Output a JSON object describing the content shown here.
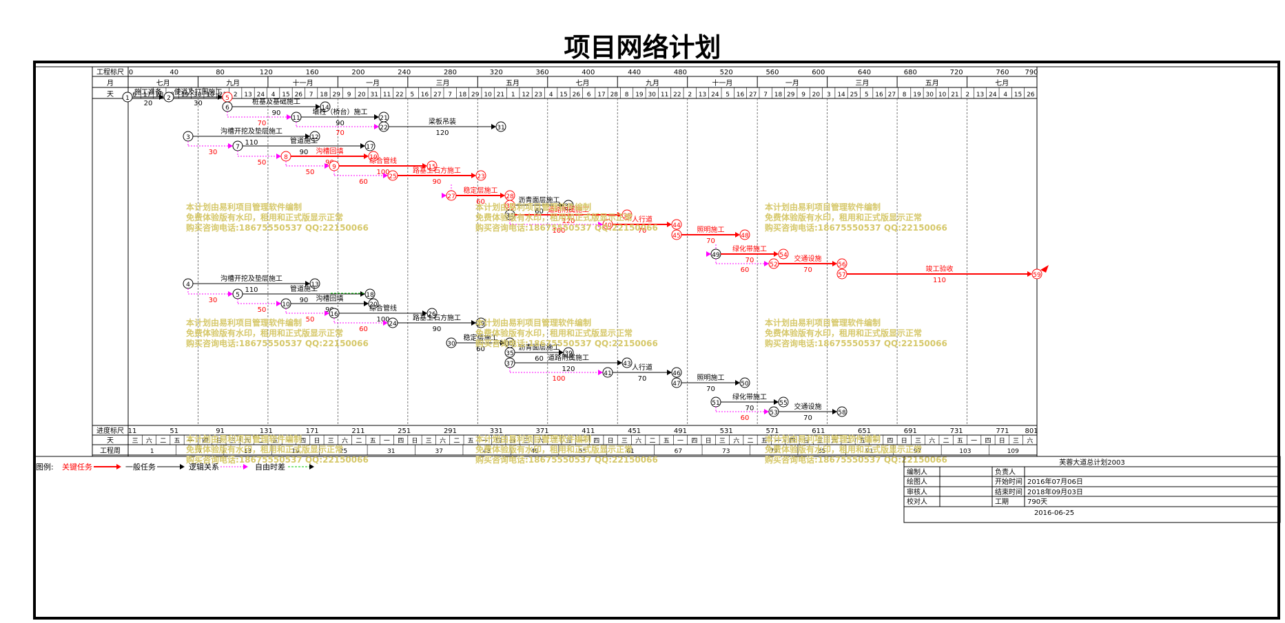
{
  "title": "项目网络计划",
  "colors": {
    "critical": "#ff0000",
    "normal": "#000000",
    "logic": "#ff00ff",
    "float": "#00cc00",
    "watermark": "#d6c86a"
  },
  "scale": {
    "label": "工程标尺",
    "ticks": [
      "0",
      "40",
      "80",
      "120",
      "160",
      "200",
      "240",
      "280",
      "320",
      "360",
      "400",
      "440",
      "480",
      "520",
      "560",
      "600",
      "640",
      "680",
      "720",
      "760",
      "790"
    ]
  },
  "months": {
    "label": "月",
    "items": [
      "七月",
      "九月",
      "十一月",
      "一月",
      "三月",
      "五月",
      "七月",
      "九月",
      "十一月",
      "一月",
      "三月",
      "五月",
      "七月"
    ]
  },
  "days": {
    "label": "天",
    "items": [
      "6",
      "17",
      "28",
      "8",
      "19",
      "30",
      "10",
      "21",
      "2",
      "13",
      "24",
      "4",
      "15",
      "26",
      "7",
      "18",
      "29",
      "9",
      "20",
      "31",
      "11",
      "22",
      "5",
      "16",
      "27",
      "7",
      "18",
      "29",
      "10",
      "21",
      "1",
      "12",
      "23",
      "4",
      "15",
      "26",
      "6",
      "17",
      "28",
      "8",
      "19",
      "30",
      "11",
      "22",
      "2",
      "13",
      "24",
      "5",
      "16",
      "27",
      "7",
      "18",
      "29",
      "9",
      "20",
      "3",
      "14",
      "25",
      "5",
      "16",
      "27",
      "8",
      "19",
      "30",
      "10",
      "21",
      "2",
      "13",
      "24",
      "4",
      "15",
      "26"
    ]
  },
  "progress": {
    "label": "进度标尺",
    "ticks": [
      "11",
      "51",
      "91",
      "131",
      "171",
      "211",
      "251",
      "291",
      "331",
      "371",
      "411",
      "451",
      "491",
      "531",
      "571",
      "611",
      "651",
      "691",
      "731",
      "771",
      "801"
    ]
  },
  "weekday": {
    "label": "天",
    "items": [
      "三",
      "六",
      "二",
      "五",
      "一",
      "四",
      "日",
      "三",
      "六",
      "二",
      "五",
      "一",
      "四",
      "日",
      "三",
      "六",
      "二",
      "五",
      "一",
      "四",
      "日",
      "三",
      "六",
      "二",
      "五",
      "一",
      "四",
      "日",
      "三",
      "六",
      "二",
      "五",
      "一",
      "四",
      "日",
      "三",
      "六",
      "二",
      "五",
      "一",
      "四",
      "日",
      "三",
      "六",
      "二",
      "五",
      "一",
      "四",
      "日",
      "三",
      "六",
      "二",
      "五",
      "一",
      "四",
      "日",
      "三",
      "六",
      "二",
      "五",
      "一",
      "四",
      "日",
      "三",
      "六"
    ]
  },
  "weeks": {
    "label": "工程周",
    "items": [
      "1",
      "7",
      "13",
      "19",
      "25",
      "31",
      "37",
      "43",
      "49",
      "55",
      "61",
      "67",
      "73",
      "79",
      "85",
      "91",
      "97",
      "103",
      "109"
    ]
  },
  "nodes_top": [
    "1",
    "2",
    "5",
    "6",
    "14",
    "11",
    "21",
    "22",
    "31",
    "3",
    "12",
    "7",
    "17",
    "8",
    "19",
    "9",
    "15",
    "25",
    "23",
    "27",
    "28",
    "32",
    "33",
    "34",
    "38",
    "36",
    "42",
    "40",
    "44",
    "45",
    "48",
    "49",
    "54",
    "52",
    "56",
    "57",
    "59"
  ],
  "nodes_bottom": [
    "4",
    "13",
    "5",
    "18",
    "10",
    "20",
    "16",
    "26",
    "24",
    "29",
    "30",
    "35",
    "39",
    "37",
    "43",
    "41",
    "46",
    "47",
    "50",
    "51",
    "55",
    "53",
    "58"
  ],
  "tasks": [
    {
      "label": "施工准备",
      "dur": "20"
    },
    {
      "label": "便道及打围施工",
      "dur": "30"
    },
    {
      "label": "桩基及基础施工",
      "dur": "90"
    },
    {
      "label": "墩柱（桥台）施工",
      "dur": "90"
    },
    {
      "label": "梁板吊装",
      "dur": "120"
    },
    {
      "label": "沟槽开挖及垫层施工",
      "dur": "110"
    },
    {
      "label": "管道施工",
      "dur": "90"
    },
    {
      "label": "沟槽回填",
      "dur": "90"
    },
    {
      "label": "综合管线",
      "dur": "100"
    },
    {
      "label": "路基土石方施工",
      "dur": "90"
    },
    {
      "label": "稳定层施工",
      "dur": "60"
    },
    {
      "label": "沥青面层施工",
      "dur": "60"
    },
    {
      "label": "道路附属施工",
      "dur": "120"
    },
    {
      "label": "人行道",
      "dur": "70"
    },
    {
      "label": "照明施工",
      "dur": "70"
    },
    {
      "label": "绿化带施工",
      "dur": "70"
    },
    {
      "label": "交通设施",
      "dur": "70"
    },
    {
      "label": "竣工验收",
      "dur": "110"
    }
  ],
  "lag_labels": [
    "70",
    "80",
    "30",
    "50",
    "50",
    "60",
    "100",
    "60",
    "60",
    "70",
    "60"
  ],
  "watermark": {
    "line1": "本计划由易利项目管理软件编制",
    "line2": "免费体验版有水印，租用和正式版显示正常",
    "line3": "购买咨询电话:18675550537 QQ:22150066"
  },
  "legend": {
    "label": "图例:",
    "critical": "关键任务",
    "normal": "一般任务",
    "logic": "逻辑关系",
    "float": "自由时差"
  },
  "titleblock": {
    "project": "芙蓉大道总计划2003",
    "editor": "编制人",
    "owner": "负责人",
    "drawer": "绘图人",
    "start_label": "开始时间",
    "start": "2016年07月06日",
    "reviewer": "审核人",
    "end_label": "结束时间",
    "end": "2018年09月03日",
    "checker": "校对人",
    "period_label": "工期",
    "period": "790天",
    "date": "2016-06-25"
  }
}
